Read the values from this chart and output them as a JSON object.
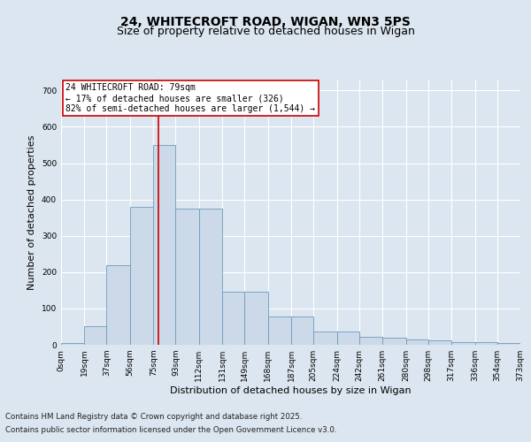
{
  "title_line1": "24, WHITECROFT ROAD, WIGAN, WN3 5PS",
  "title_line2": "Size of property relative to detached houses in Wigan",
  "xlabel": "Distribution of detached houses by size in Wigan",
  "ylabel": "Number of detached properties",
  "bar_color": "#ccd9e8",
  "bar_edge_color": "#6b9cbd",
  "background_color": "#dce6f0",
  "fig_background_color": "#dce6f0",
  "grid_color": "#ffffff",
  "vline_x": 79,
  "vline_color": "#cc0000",
  "annotation_text": "24 WHITECROFT ROAD: 79sqm\n← 17% of detached houses are smaller (326)\n82% of semi-detached houses are larger (1,544) →",
  "annotation_box_color": "#ffffff",
  "annotation_box_edge": "#cc0000",
  "bins": [
    0,
    19,
    37,
    56,
    75,
    93,
    112,
    131,
    149,
    168,
    187,
    205,
    224,
    242,
    261,
    280,
    298,
    317,
    336,
    354,
    373
  ],
  "counts": [
    5,
    52,
    220,
    380,
    550,
    375,
    375,
    145,
    145,
    78,
    78,
    37,
    37,
    22,
    20,
    15,
    12,
    8,
    8,
    4,
    2
  ],
  "ylim": [
    0,
    730
  ],
  "yticks": [
    0,
    100,
    200,
    300,
    400,
    500,
    600,
    700
  ],
  "footer_line1": "Contains HM Land Registry data © Crown copyright and database right 2025.",
  "footer_line2": "Contains public sector information licensed under the Open Government Licence v3.0.",
  "title_fontsize": 10,
  "subtitle_fontsize": 9,
  "axis_label_fontsize": 8,
  "tick_fontsize": 6.5,
  "footer_fontsize": 6.2,
  "annotation_fontsize": 7.0
}
